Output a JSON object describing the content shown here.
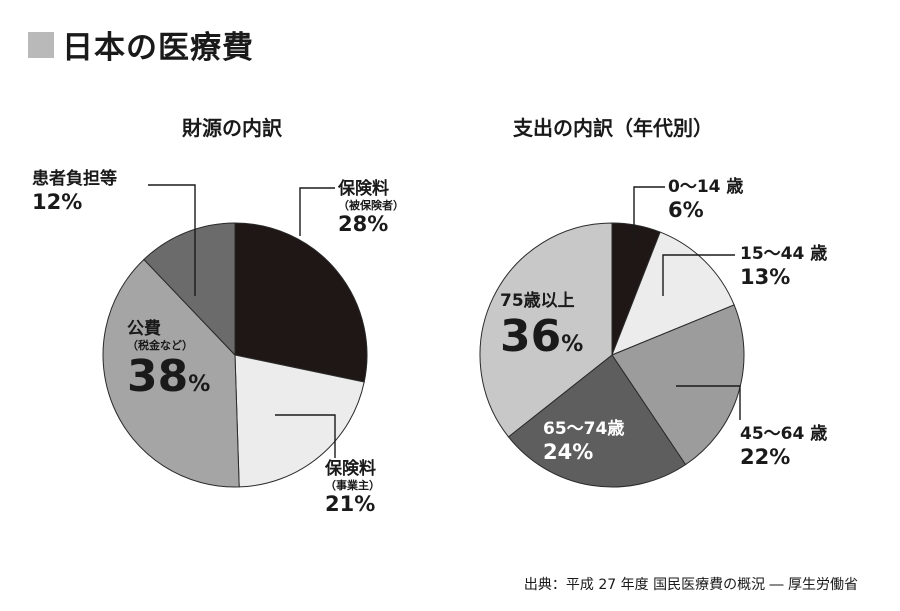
{
  "page_title": "日本の医療費",
  "source": "出典：平成 27 年度 国民医療費の概況 ― 厚生労働省",
  "chart_data": [
    {
      "type": "pie",
      "title": "財源の内訳",
      "slices": [
        {
          "label": "保険料",
          "sublabel": "（被保険者）",
          "value": 28,
          "text": "28%",
          "color": "#1f1616"
        },
        {
          "label": "保険料",
          "sublabel": "（事業主）",
          "value": 21,
          "text": "21%",
          "color": "#ececec"
        },
        {
          "label": "公費",
          "sublabel": "（税金など）",
          "value": 38,
          "text": "38",
          "color": "#a5a5a5"
        },
        {
          "label": "患者負担等",
          "sublabel": "",
          "value": 12,
          "text": "12%",
          "color": "#6b6b6b"
        }
      ]
    },
    {
      "type": "pie",
      "title": "支出の内訳（年代別）",
      "slices": [
        {
          "label": "0～14 歳",
          "value": 6,
          "text": "6%",
          "color": "#1f1616"
        },
        {
          "label": "15～44 歳",
          "value": 13,
          "text": "13%",
          "color": "#ececec"
        },
        {
          "label": "45～64 歳",
          "value": 22,
          "text": "22%",
          "color": "#9c9c9c"
        },
        {
          "label": "65～74歳",
          "value": 24,
          "text": "24%",
          "color": "#5e5e5e"
        },
        {
          "label": "75歳以上",
          "value": 36,
          "text": "36",
          "color": "#c8c8c8"
        }
      ]
    }
  ],
  "percent_sign": "%"
}
